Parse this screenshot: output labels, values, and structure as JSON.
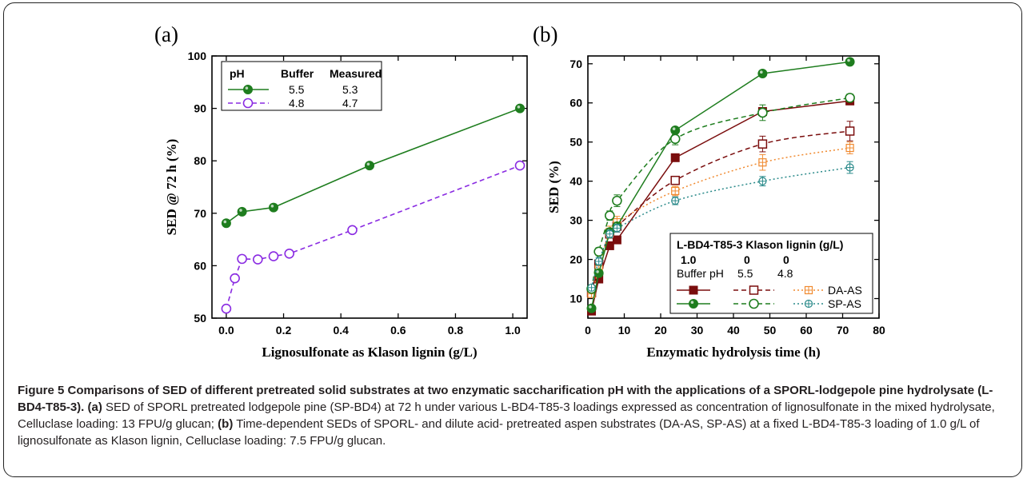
{
  "caption": {
    "head": "Figure 5 Comparisons of SED of different pretreated solid substrates at two enzymatic saccharification pH with the applications of a SPORL-lodgepole pine hydrolysate (L-BD4-T85-3).",
    "a_tag": "(a)",
    "a_text": " SED of SPORL pretreated lodgepole pine (SP-BD4) at 72 h under various L-BD4-T85-3 loadings expressed as concentration of lignosulfonate in the mixed hydrolysate, Celluclase loading: 13 FPU/g glucan; ",
    "b_tag": "(b)",
    "b_text": " Time-dependent SEDs of SPORL- and dilute acid- pretreated aspen substrates (DA-AS, SP-AS) at a fixed L-BD4-T85-3 loading of 1.0 g/L of lignosulfonate as Klason lignin, Celluclase loading: 7.5 FPU/g glucan."
  },
  "colors": {
    "green": "#1e7d1e",
    "purple": "#8a2be2",
    "maroon": "#7a0d0d",
    "orange": "#f08a30",
    "teal": "#2a8a8a"
  },
  "chart_data": [
    {
      "panel_label": "(a)",
      "type": "line",
      "xlabel": "Lignosulfonate as Klason lignin (g/L)",
      "ylabel": "SED @ 72 h (%)",
      "xlim": [
        -0.05,
        1.05
      ],
      "ylim": [
        50,
        100
      ],
      "xticks": [
        "0.0",
        "0.2",
        "0.4",
        "0.6",
        "0.8",
        "1.0"
      ],
      "yticks": [
        "50",
        "60",
        "70",
        "80",
        "90",
        "100"
      ],
      "legend": {
        "headers": [
          "pH",
          "Buffer",
          "Measured"
        ],
        "rows": [
          {
            "buffer": "5.5",
            "measured": "5.3"
          },
          {
            "buffer": "4.8",
            "measured": "4.7"
          }
        ]
      },
      "series": [
        {
          "buffer_pH": "5.5",
          "marker": "filled-circle",
          "line": "solid",
          "color": "#1e7d1e",
          "x": [
            0.0,
            0.055,
            0.165,
            0.5,
            1.025
          ],
          "y": [
            68.1,
            70.3,
            71.1,
            79.1,
            90.0
          ]
        },
        {
          "buffer_pH": "4.8",
          "marker": "open-circle",
          "line": "dashed",
          "color": "#8a2be2",
          "x": [
            0.0,
            0.03,
            0.055,
            0.11,
            0.165,
            0.22,
            0.44,
            1.025
          ],
          "y": [
            51.8,
            57.6,
            61.3,
            61.2,
            61.8,
            62.3,
            66.8,
            79.1
          ]
        }
      ]
    },
    {
      "panel_label": "(b)",
      "type": "line",
      "xlabel": "Enzymatic hydrolysis time (h)",
      "ylabel": "SED (%)",
      "xlim": [
        0,
        80
      ],
      "ylim": [
        5,
        72
      ],
      "xticks": [
        "0",
        "10",
        "20",
        "30",
        "40",
        "50",
        "60",
        "70",
        "80"
      ],
      "yticks": [
        "10",
        "20",
        "30",
        "40",
        "50",
        "60",
        "70"
      ],
      "legend": {
        "title": "L-BD4-T85-3 Klason lignin (g/L)",
        "lignin_values": [
          "1.0",
          "0",
          "0"
        ],
        "buffer_label": "Buffer pH",
        "buffer_values": [
          "5.5",
          "4.8"
        ],
        "row_labels": [
          "DA-AS",
          "SP-AS"
        ]
      },
      "series": [
        {
          "substrate": "DA-AS",
          "lignin": "1.0",
          "pH": "5.5",
          "marker": "filled-square",
          "line": "solid",
          "color": "#7a0d0d",
          "x": [
            1,
            3,
            6,
            8,
            24,
            48,
            72
          ],
          "y": [
            6.8,
            15.0,
            23.5,
            25.0,
            46.0,
            57.8,
            60.5
          ],
          "err": [
            0,
            0,
            0,
            0,
            0,
            0,
            0
          ]
        },
        {
          "substrate": "DA-AS",
          "lignin": "0",
          "pH": "5.5",
          "marker": "open-square",
          "line": "dashed",
          "color": "#7a0d0d",
          "x": [
            1,
            3,
            6,
            8,
            24,
            48,
            72
          ],
          "y": [
            11.5,
            18.8,
            26.5,
            28.5,
            40.2,
            49.5,
            52.8
          ],
          "err": [
            0.6,
            1.0,
            1.0,
            1.5,
            1.0,
            2.0,
            2.5
          ]
        },
        {
          "substrate": "DA-AS",
          "lignin": "0",
          "pH": "4.8",
          "marker": "crossed-square",
          "line": "dotted",
          "color": "#f08a30",
          "x": [
            1,
            3,
            6,
            8,
            24,
            48,
            72
          ],
          "y": [
            11.2,
            17.5,
            27.0,
            29.5,
            37.5,
            44.8,
            48.5
          ],
          "err": [
            0.8,
            1.0,
            1.5,
            1.5,
            1.2,
            2.0,
            1.5
          ]
        },
        {
          "substrate": "SP-AS",
          "lignin": "1.0",
          "pH": "5.5",
          "marker": "filled-circle",
          "line": "solid",
          "color": "#1e7d1e",
          "x": [
            1,
            3,
            6,
            8,
            24,
            48,
            72
          ],
          "y": [
            7.5,
            16.5,
            27.0,
            28.5,
            53.0,
            67.5,
            70.5
          ],
          "err": [
            0,
            0,
            0,
            0,
            0,
            0,
            0
          ]
        },
        {
          "substrate": "SP-AS",
          "lignin": "0",
          "pH": "5.5",
          "marker": "open-circle",
          "line": "dashed",
          "color": "#1e7d1e",
          "x": [
            1,
            3,
            6,
            8,
            24,
            48,
            72
          ],
          "y": [
            12.5,
            22.0,
            31.2,
            35.0,
            50.8,
            57.5,
            61.3
          ],
          "err": [
            0.6,
            1.0,
            1.2,
            1.5,
            1.5,
            2.0,
            1.0
          ]
        },
        {
          "substrate": "SP-AS",
          "lignin": "0",
          "pH": "4.8",
          "marker": "crossed-circle",
          "line": "dotted",
          "color": "#2a8a8a",
          "x": [
            1,
            3,
            6,
            8,
            24,
            48,
            72
          ],
          "y": [
            12.8,
            19.5,
            26.5,
            28.0,
            35.0,
            40.0,
            43.5
          ],
          "err": [
            0.6,
            1.0,
            1.0,
            1.0,
            1.0,
            1.2,
            1.5
          ]
        }
      ]
    }
  ]
}
